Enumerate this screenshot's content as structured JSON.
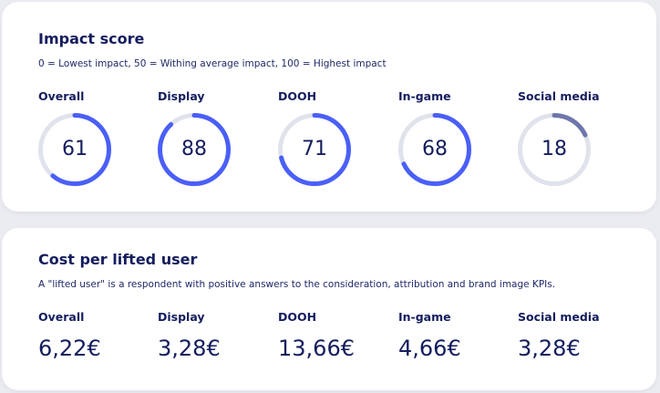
{
  "impact": {
    "title": "Impact score",
    "description": "0 = Lowest impact, 50 = Withing average impact, 100 = Highest impact",
    "track_color": "#e0e2ec",
    "metrics": [
      {
        "label": "Overall",
        "value": "61",
        "score": 61,
        "color": "#4a5ff7"
      },
      {
        "label": "Display",
        "value": "88",
        "score": 88,
        "color": "#4a5ff7"
      },
      {
        "label": "DOOH",
        "value": "71",
        "score": 71,
        "color": "#4a5ff7"
      },
      {
        "label": "In-game",
        "value": "68",
        "score": 68,
        "color": "#4a5ff7"
      },
      {
        "label": "Social media",
        "value": "18",
        "score": 18,
        "color": "#6f76ac"
      }
    ]
  },
  "cost": {
    "title": "Cost per lifted user",
    "description": "A \"lifted user\" is a respondent with positive answers to the consideration, attribution and brand image KPIs.",
    "metrics": [
      {
        "label": "Overall",
        "value": "6,22€"
      },
      {
        "label": "Display",
        "value": "3,28€"
      },
      {
        "label": "DOOH",
        "value": "13,66€"
      },
      {
        "label": "In-game",
        "value": "4,66€"
      },
      {
        "label": "Social media",
        "value": "3,28€"
      }
    ]
  }
}
